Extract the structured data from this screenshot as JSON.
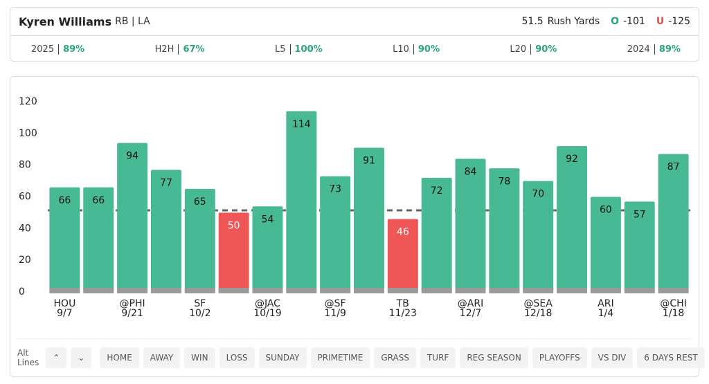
{
  "header": {
    "player": "Kyren Williams",
    "position_team": "RB | LA",
    "line": 51.5,
    "stat": "Rush Yards",
    "over_label": "O",
    "over_odds": "-101",
    "under_label": "U",
    "under_odds": "-125"
  },
  "hit_rates": [
    {
      "label": "2025",
      "value": "89%"
    },
    {
      "label": "H2H",
      "value": "67%"
    },
    {
      "label": "L5",
      "value": "100%"
    },
    {
      "label": "L10",
      "value": "90%"
    },
    {
      "label": "L20",
      "value": "90%"
    },
    {
      "label": "2024",
      "value": "89%"
    }
  ],
  "chart_data": {
    "type": "bar",
    "categories": [
      "HOU",
      null,
      "@PHI",
      null,
      "SF",
      null,
      "@JAC",
      null,
      "@SF",
      null,
      "TB",
      null,
      "@ARI",
      null,
      "@SEA",
      null,
      "ARI",
      null,
      "@CHI"
    ],
    "dates": [
      "9/7",
      null,
      "9/21",
      null,
      "10/2",
      null,
      "10/19",
      null,
      "11/9",
      null,
      "11/23",
      null,
      "12/7",
      null,
      "12/18",
      null,
      "1/4",
      null,
      "1/18"
    ],
    "values": [
      66,
      66,
      94,
      77,
      65,
      50,
      54,
      114,
      73,
      91,
      46,
      72,
      84,
      78,
      70,
      92,
      60,
      57,
      87
    ],
    "color": "#47b994",
    "under_color": "#ef5656",
    "ylim": [
      0,
      120
    ],
    "yticks": [
      0,
      20,
      40,
      60,
      80,
      100,
      120
    ]
  },
  "filters": {
    "label": "Alt Lines",
    "chips": [
      "HOME",
      "AWAY",
      "WIN",
      "LOSS",
      "SUNDAY",
      "PRIMETIME",
      "GRASS",
      "TURF",
      "REG SEASON",
      "PLAYOFFS",
      "VS DIV",
      "6 DAYS REST"
    ]
  }
}
